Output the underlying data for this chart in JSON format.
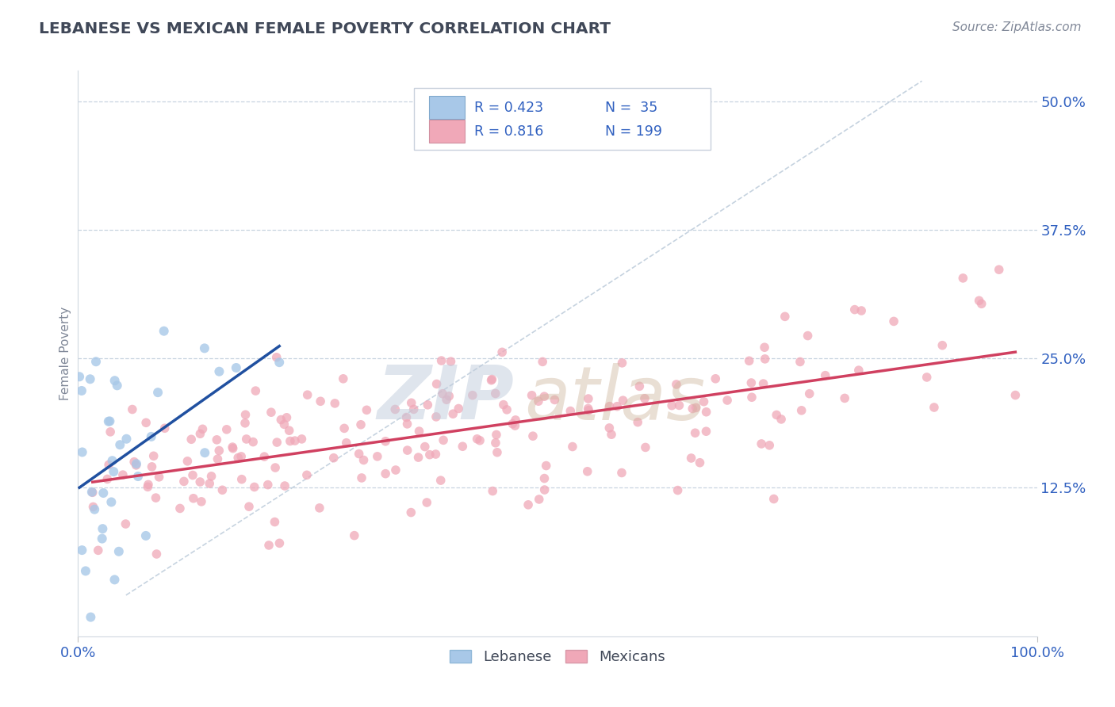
{
  "title": "LEBANESE VS MEXICAN FEMALE POVERTY CORRELATION CHART",
  "source": "Source: ZipAtlas.com",
  "ylabel": "Female Poverty",
  "xlim": [
    0.0,
    1.0
  ],
  "ylim": [
    -0.02,
    0.53
  ],
  "yticks": [
    0.125,
    0.25,
    0.375,
    0.5
  ],
  "ytick_labels": [
    "12.5%",
    "25.0%",
    "37.5%",
    "50.0%"
  ],
  "xticks": [
    0.0,
    1.0
  ],
  "xtick_labels": [
    "0.0%",
    "100.0%"
  ],
  "legend_labels": [
    "Lebanese",
    "Mexicans"
  ],
  "R_lebanese": 0.423,
  "N_lebanese": 35,
  "R_mexican": 0.816,
  "N_mexican": 199,
  "blue_scatter_color": "#a8c8e8",
  "pink_scatter_color": "#f0a8b8",
  "blue_line_color": "#2050a0",
  "pink_line_color": "#d04060",
  "ref_line_color": "#b8c8d8",
  "title_color": "#404858",
  "axis_label_color": "#3060c0",
  "tick_color": "#3060c0",
  "watermark_color_zip": "#c0ccdc",
  "watermark_color_atlas": "#d0b8a0",
  "background_color": "#ffffff",
  "grid_color": "#c8d4e0",
  "source_color": "#808898"
}
